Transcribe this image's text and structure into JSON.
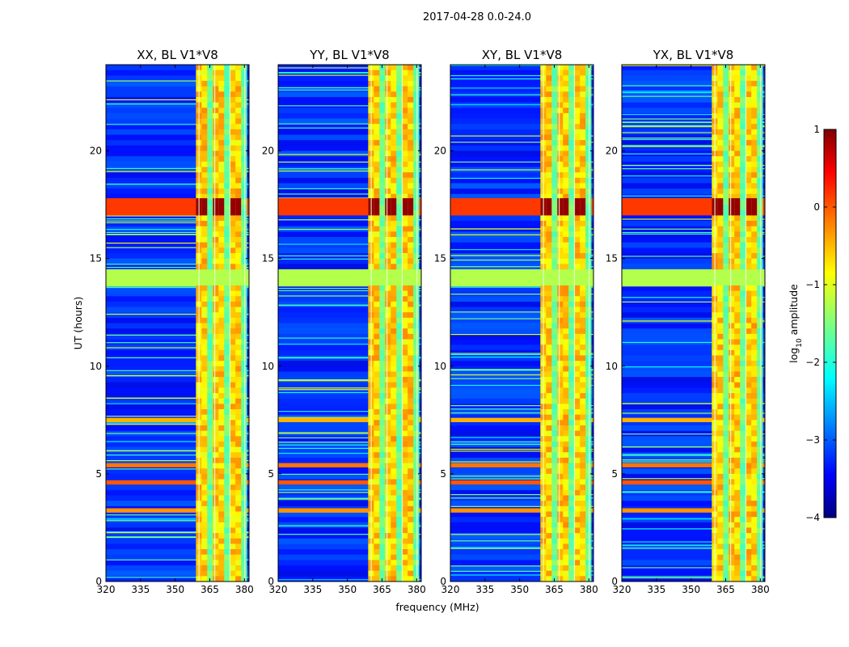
{
  "figure_title": "2017-04-28 0.0-24.0",
  "chart_data": [
    {
      "type": "heatmap",
      "title": "XX, BL V1*V8",
      "xlabel": "",
      "ylabel": "UT (hours)",
      "xlim": [
        320,
        382
      ],
      "ylim": [
        0,
        24
      ],
      "xticks": [
        320,
        335,
        350,
        365,
        380
      ],
      "yticks": [
        0,
        5,
        10,
        15,
        20
      ],
      "bright_band_mhz": [
        359,
        381
      ],
      "strong_rows_ut": [
        [
          17.0,
          17.8
        ],
        [
          4.5,
          4.7
        ],
        [
          5.3,
          5.5
        ],
        [
          3.2,
          3.4
        ],
        [
          7.4,
          7.6
        ]
      ],
      "blank_rows_ut": [
        [
          13.7,
          14.5
        ]
      ],
      "value_label": "log10 amplitude"
    },
    {
      "type": "heatmap",
      "title": "YY, BL V1*V8",
      "xlabel": "frequency (MHz)",
      "ylabel": "",
      "xlim": [
        320,
        382
      ],
      "ylim": [
        0,
        24
      ],
      "xticks": [
        320,
        335,
        350,
        365,
        380
      ],
      "yticks": [
        0,
        5,
        10,
        15,
        20
      ],
      "bright_band_mhz": [
        359,
        381
      ],
      "strong_rows_ut": [
        [
          17.0,
          17.8
        ],
        [
          4.5,
          4.7
        ],
        [
          5.3,
          5.5
        ],
        [
          3.2,
          3.4
        ],
        [
          7.4,
          7.6
        ]
      ],
      "blank_rows_ut": [
        [
          13.7,
          14.5
        ]
      ],
      "value_label": "log10 amplitude"
    },
    {
      "type": "heatmap",
      "title": "XY, BL V1*V8",
      "xlabel": "",
      "ylabel": "",
      "xlim": [
        320,
        382
      ],
      "ylim": [
        0,
        24
      ],
      "xticks": [
        320,
        335,
        350,
        365,
        380
      ],
      "yticks": [
        0,
        5,
        10,
        15,
        20
      ],
      "bright_band_mhz": [
        359,
        381
      ],
      "strong_rows_ut": [
        [
          17.0,
          17.8
        ],
        [
          4.5,
          4.7
        ],
        [
          5.3,
          5.5
        ],
        [
          3.2,
          3.4
        ],
        [
          7.4,
          7.6
        ]
      ],
      "blank_rows_ut": [
        [
          13.7,
          14.5
        ]
      ],
      "value_label": "log10 amplitude"
    },
    {
      "type": "heatmap",
      "title": "YX, BL V1*V8",
      "xlabel": "",
      "ylabel": "",
      "xlim": [
        320,
        382
      ],
      "ylim": [
        0,
        24
      ],
      "xticks": [
        320,
        335,
        350,
        365,
        380
      ],
      "yticks": [
        0,
        5,
        10,
        15,
        20
      ],
      "bright_band_mhz": [
        359,
        381
      ],
      "strong_rows_ut": [
        [
          17.0,
          17.8
        ],
        [
          4.5,
          4.7
        ],
        [
          5.3,
          5.5
        ],
        [
          3.2,
          3.4
        ],
        [
          7.4,
          7.6
        ]
      ],
      "blank_rows_ut": [
        [
          13.7,
          14.5
        ]
      ],
      "value_label": "log10 amplitude"
    }
  ],
  "colorbar": {
    "label": "log10 amplitude",
    "label_base": "log",
    "label_sub": "10",
    "label_rest": " amplitude",
    "range": [
      -4,
      1
    ],
    "ticks": [
      1,
      0,
      -1,
      -2,
      -3,
      -4
    ],
    "tick_labels": [
      "1",
      "0",
      "−1",
      "−2",
      "−3",
      "−4"
    ]
  }
}
